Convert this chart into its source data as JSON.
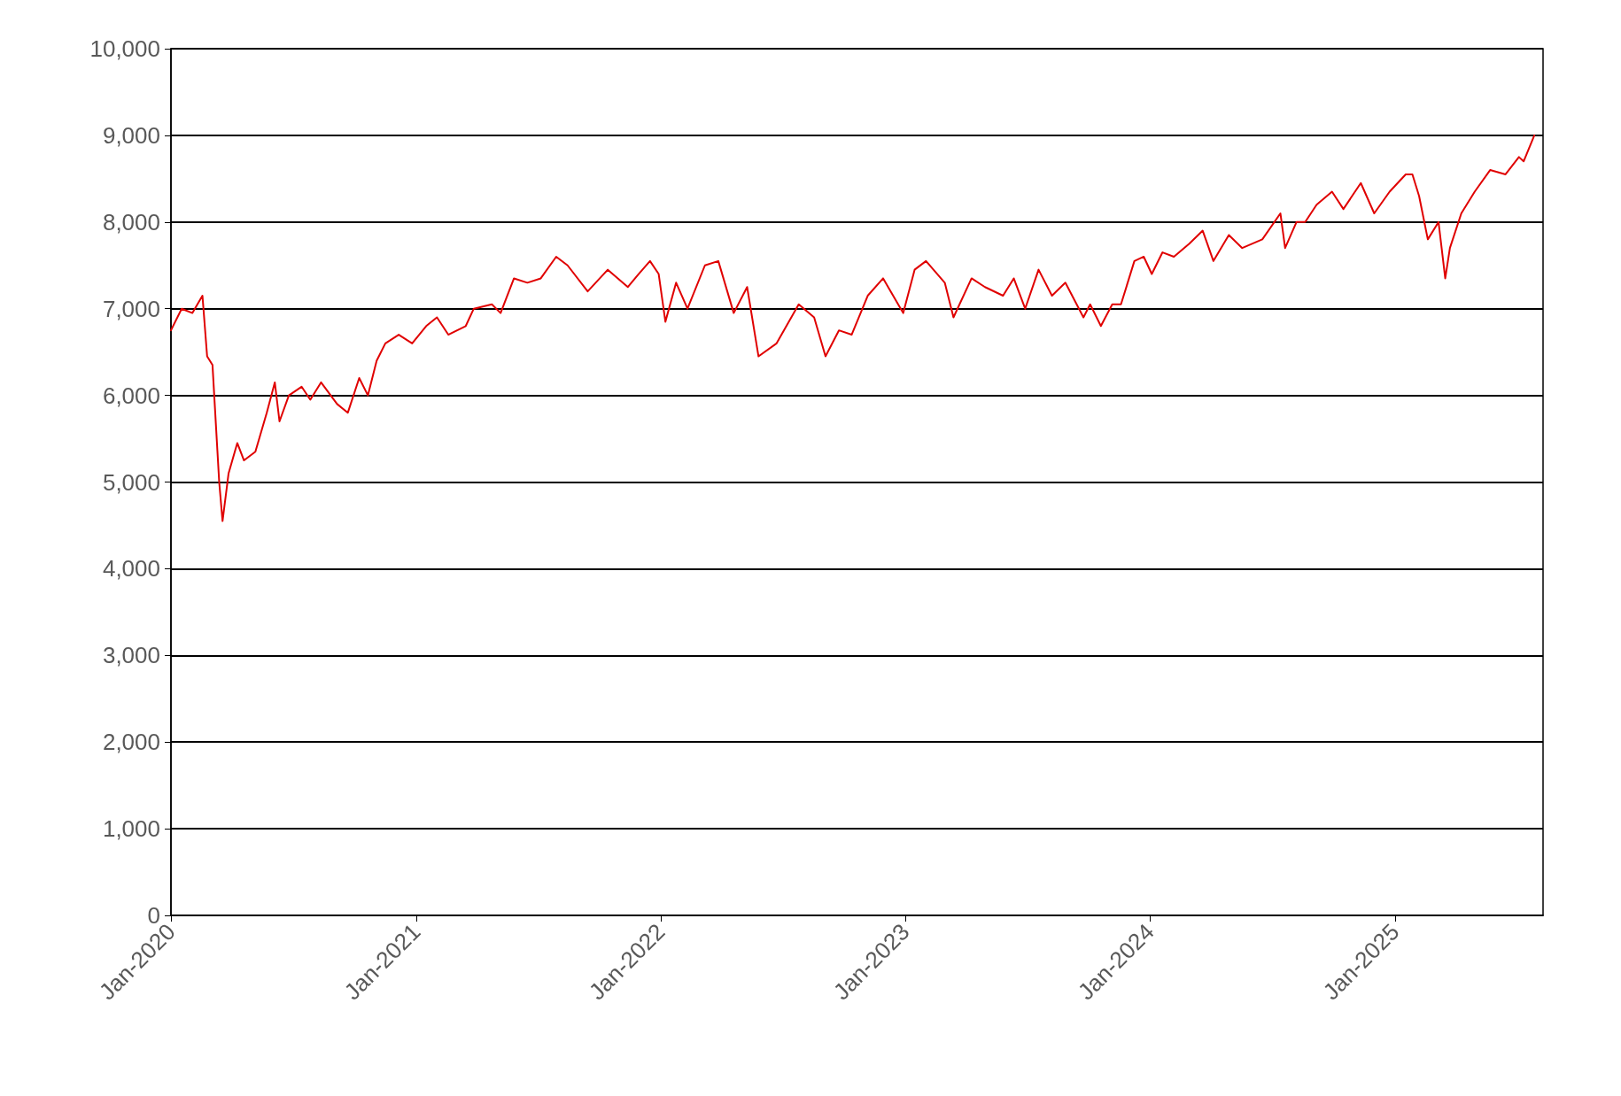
{
  "chart_data": {
    "type": "line",
    "x": [
      "2020-01-01",
      "2020-01-17",
      "2020-02-02",
      "2020-02-17",
      "2020-02-24",
      "2020-03-03",
      "2020-03-13",
      "2020-03-18",
      "2020-03-27",
      "2020-04-09",
      "2020-04-19",
      "2020-05-06",
      "2020-05-23",
      "2020-06-04",
      "2020-06-11",
      "2020-06-25",
      "2020-07-14",
      "2020-07-27",
      "2020-08-12",
      "2020-09-05",
      "2020-09-21",
      "2020-10-08",
      "2020-10-21",
      "2020-11-03",
      "2020-11-16",
      "2020-12-06",
      "2020-12-26",
      "2021-01-16",
      "2021-02-01",
      "2021-02-18",
      "2021-03-16",
      "2021-03-28",
      "2021-04-24",
      "2021-05-07",
      "2021-05-27",
      "2021-06-16",
      "2021-07-06",
      "2021-07-29",
      "2021-08-15",
      "2021-09-14",
      "2021-10-14",
      "2021-11-13",
      "2021-11-29",
      "2021-12-16",
      "2021-12-29",
      "2022-01-08",
      "2022-01-24",
      "2022-02-10",
      "2022-03-08",
      "2022-03-28",
      "2022-04-20",
      "2022-05-10",
      "2022-05-27",
      "2022-06-23",
      "2022-07-26",
      "2022-08-18",
      "2022-09-04",
      "2022-09-24",
      "2022-10-13",
      "2022-11-06",
      "2022-11-29",
      "2022-12-29",
      "2023-01-15",
      "2023-02-01",
      "2023-03-01",
      "2023-03-14",
      "2023-04-10",
      "2023-04-30",
      "2023-05-27",
      "2023-06-12",
      "2023-06-29",
      "2023-07-19",
      "2023-08-08",
      "2023-08-28",
      "2023-09-24",
      "2023-10-04",
      "2023-10-20",
      "2023-11-06",
      "2023-11-19",
      "2023-12-09",
      "2023-12-23",
      "2024-01-04",
      "2024-01-20",
      "2024-02-06",
      "2024-02-29",
      "2024-03-20",
      "2024-04-05",
      "2024-04-28",
      "2024-05-18",
      "2024-06-17",
      "2024-07-14",
      "2024-07-21",
      "2024-08-07",
      "2024-08-20",
      "2024-09-06",
      "2024-09-29",
      "2024-10-16",
      "2024-11-11",
      "2024-12-01",
      "2024-12-24",
      "2025-01-17",
      "2025-01-27",
      "2025-02-06",
      "2025-02-19",
      "2025-03-07",
      "2025-03-17",
      "2025-03-24",
      "2025-04-10",
      "2025-04-30",
      "2025-05-23",
      "2025-06-15",
      "2025-07-05",
      "2025-07-12",
      "2025-07-28"
    ],
    "series": [
      {
        "color": "#e00000",
        "values": [
          6750,
          7000,
          6950,
          7150,
          6450,
          6350,
          5000,
          4550,
          5100,
          5450,
          5250,
          5350,
          5800,
          6150,
          5700,
          6000,
          6100,
          5950,
          6150,
          5900,
          5800,
          6200,
          6000,
          6400,
          6600,
          6700,
          6600,
          6800,
          6900,
          6700,
          6800,
          7000,
          7050,
          6950,
          7350,
          7300,
          7350,
          7600,
          7500,
          7200,
          7450,
          7250,
          7400,
          7550,
          7400,
          6850,
          7300,
          7000,
          7500,
          7550,
          6950,
          7250,
          6450,
          6600,
          7050,
          6900,
          6450,
          6750,
          6700,
          7150,
          7350,
          6950,
          7450,
          7550,
          7300,
          6900,
          7350,
          7250,
          7150,
          7350,
          7000,
          7450,
          7150,
          7300,
          6900,
          7050,
          6800,
          7050,
          7050,
          7550,
          7600,
          7400,
          7650,
          7600,
          7750,
          7900,
          7550,
          7850,
          7700,
          7800,
          8100,
          7700,
          8000,
          8000,
          8200,
          8350,
          8150,
          8450,
          8100,
          8350,
          8550,
          8550,
          8300,
          7800,
          8000,
          7350,
          7700,
          8100,
          8350,
          8600,
          8550,
          8750,
          8700,
          9000
        ]
      }
    ],
    "xlim": [
      "2020-01-01",
      "2025-08-10"
    ],
    "xticks": [
      {
        "value": "2020-01-01",
        "label": "Jan-2020"
      },
      {
        "value": "2021-01-01",
        "label": "Jan-2021"
      },
      {
        "value": "2022-01-01",
        "label": "Jan-2022"
      },
      {
        "value": "2023-01-01",
        "label": "Jan-2023"
      },
      {
        "value": "2024-01-01",
        "label": "Jan-2024"
      },
      {
        "value": "2025-01-01",
        "label": "Jan-2025"
      }
    ],
    "ylim": [
      0,
      10000
    ],
    "yticks": [
      0,
      {
        "value": 1000,
        "label": "1,000"
      },
      {
        "value": 2000,
        "label": "2,000"
      },
      {
        "value": 3000,
        "label": "3,000"
      },
      {
        "value": 4000,
        "label": "4,000"
      },
      {
        "value": 5000,
        "label": "5,000"
      },
      {
        "value": 6000,
        "label": "6,000"
      },
      {
        "value": 7000,
        "label": "7,000"
      },
      {
        "value": 8000,
        "label": "8,000"
      },
      {
        "value": 9000,
        "label": "9,000"
      },
      {
        "value": 10000,
        "label": "10,000"
      }
    ],
    "grid": "y",
    "marker": "none",
    "line_style": "solid"
  }
}
